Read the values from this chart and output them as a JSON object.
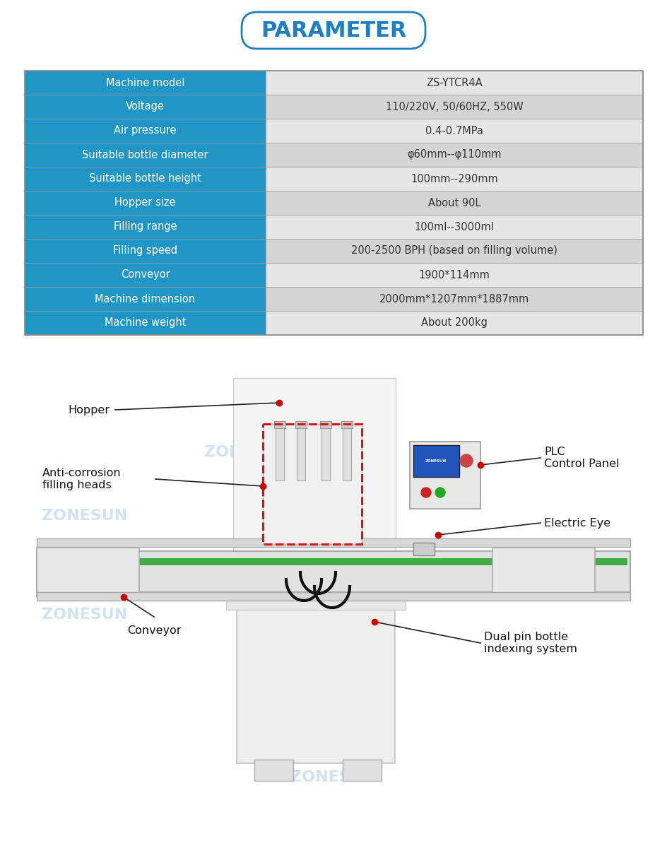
{
  "title": "PARAMETER",
  "title_color": "#1e7fc2",
  "title_border_color": "#1e7fc2",
  "bg_color": "#ffffff",
  "table_rows": [
    [
      "Machine model",
      "ZS-YTCR4A"
    ],
    [
      "Voltage",
      "110/220V, 50/60HZ, 550W"
    ],
    [
      "Air pressure",
      "0.4-0.7MPa"
    ],
    [
      "Suitable bottle diameter",
      "φ60mm--φ110mm"
    ],
    [
      "Suitable bottle height",
      "100mm--290mm"
    ],
    [
      "Hopper size",
      "About 90L"
    ],
    [
      "Filling range",
      "100ml--3000ml"
    ],
    [
      "Filling speed",
      "200-2500 BPH (based on filling volume)"
    ],
    [
      "Conveyor",
      "1900*114mm"
    ],
    [
      "Machine dimension",
      "2000mm*1207mm*1887mm"
    ],
    [
      "Machine weight",
      "About 200kg"
    ]
  ],
  "header_bg": "#2196c4",
  "header_text_color": "#ffffff",
  "value_bg_odd": "#e6e6e6",
  "value_bg_even": "#d4d4d4",
  "value_text_color": "#333333",
  "table_border_color": "#999999",
  "zonesun_color": "#bdd8ee",
  "annotation_line_color": "#222222",
  "annotation_dot_color": "#cc0000",
  "annotation_fontsize": 11.5,
  "machine_body_color": "#f2f2f2",
  "machine_edge_color": "#cccccc",
  "conveyor_color": "#e0e0e0",
  "green_belt_color": "#44aa44",
  "plc_bg": "#404040",
  "plc_screen": "#2255bb",
  "dashed_box_color": "#dd1111"
}
